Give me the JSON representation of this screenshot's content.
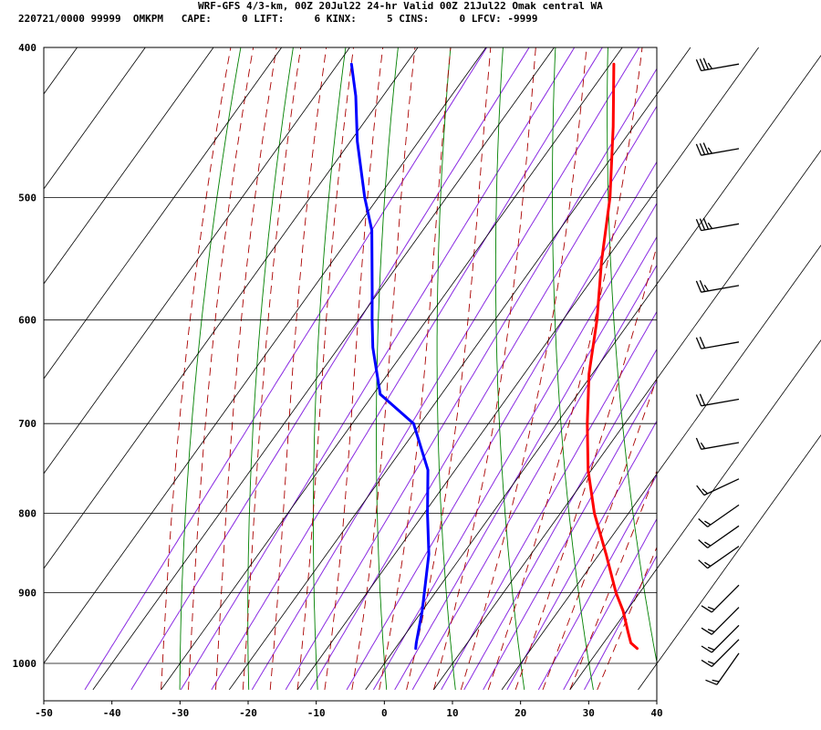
{
  "header": {
    "line1": "WRF-GFS 4/3-km, 00Z 20Jul22 24-hr Valid 00Z 21Jul22 Omak central WA",
    "line2": "220721/0000 99999  OMKPM   CAPE:     0 LIFT:     6 KINX:     5 CINS:     0 LFCV: -9999"
  },
  "colors": {
    "temperature": "#ff0000",
    "dewpoint": "#0000ff",
    "dry_adiabat": "#008000",
    "moist_adiabat": "#aa0000",
    "mixing_ratio": "#8a2be2",
    "grid": "#000000"
  },
  "chart_data": {
    "type": "line",
    "title": "WRF-GFS 4/3-km, 00Z 20Jul22 24-hr Valid 00Z 21Jul22 Omak central WA",
    "subtitle": "220721/0000 99999  OMKPM   CAPE:     0 LIFT:     6 KINX:     5 CINS:     0 LFCV: -9999",
    "xlabel": "",
    "ylabel": "",
    "x_axis": {
      "unit": "degC",
      "range": [
        -50,
        40
      ],
      "ticks": [
        -50,
        -40,
        -30,
        -20,
        -10,
        0,
        10,
        20,
        30,
        40
      ]
    },
    "y_axis": {
      "unit": "hPa",
      "scale": "log",
      "inverted": true,
      "range": [
        1040,
        400
      ],
      "ticks": [
        400,
        500,
        600,
        700,
        800,
        900,
        1000
      ]
    },
    "skew": "skew-T log-P",
    "grid": true,
    "background_lines": [
      "dry adiabats",
      "moist adiabats",
      "mixing ratio lines"
    ],
    "series": [
      {
        "name": "",
        "kind": "temperature",
        "color": "#ff0000",
        "points": [
          {
            "p": 978,
            "t": 35.5
          },
          {
            "p": 970,
            "t": 34.0
          },
          {
            "p": 955,
            "t": 32.5
          },
          {
            "p": 925,
            "t": 29.5
          },
          {
            "p": 900,
            "t": 26.5
          },
          {
            "p": 850,
            "t": 21.0
          },
          {
            "p": 800,
            "t": 15.0
          },
          {
            "p": 750,
            "t": 9.5
          },
          {
            "p": 700,
            "t": 4.5
          },
          {
            "p": 650,
            "t": -0.5
          },
          {
            "p": 600,
            "t": -5.0
          },
          {
            "p": 550,
            "t": -10.5
          },
          {
            "p": 500,
            "t": -16.0
          },
          {
            "p": 450,
            "t": -23.0
          },
          {
            "p": 410,
            "t": -29.5
          }
        ]
      },
      {
        "name": "",
        "kind": "dewpoint",
        "color": "#0000ff",
        "points": [
          {
            "p": 978,
            "t": 3.0
          },
          {
            "p": 970,
            "t": 2.5
          },
          {
            "p": 925,
            "t": 0.0
          },
          {
            "p": 850,
            "t": -5.0
          },
          {
            "p": 800,
            "t": -9.5
          },
          {
            "p": 750,
            "t": -14.0
          },
          {
            "p": 700,
            "t": -21.0
          },
          {
            "p": 670,
            "t": -29.0
          },
          {
            "p": 625,
            "t": -35.0
          },
          {
            "p": 600,
            "t": -38.0
          },
          {
            "p": 575,
            "t": -41.0
          },
          {
            "p": 525,
            "t": -47.5
          },
          {
            "p": 500,
            "t": -52.0
          },
          {
            "p": 460,
            "t": -59.0
          },
          {
            "p": 430,
            "t": -64.0
          },
          {
            "p": 410,
            "t": -68.0
          }
        ]
      }
    ],
    "wind_barbs": [
      {
        "p": 410,
        "dir": 260,
        "kt": 35
      },
      {
        "p": 465,
        "dir": 260,
        "kt": 35
      },
      {
        "p": 520,
        "dir": 260,
        "kt": 35
      },
      {
        "p": 570,
        "dir": 260,
        "kt": 25
      },
      {
        "p": 620,
        "dir": 260,
        "kt": 20
      },
      {
        "p": 675,
        "dir": 260,
        "kt": 20
      },
      {
        "p": 720,
        "dir": 260,
        "kt": 15
      },
      {
        "p": 760,
        "dir": 245,
        "kt": 15
      },
      {
        "p": 790,
        "dir": 235,
        "kt": 15
      },
      {
        "p": 815,
        "dir": 235,
        "kt": 15
      },
      {
        "p": 840,
        "dir": 235,
        "kt": 15
      },
      {
        "p": 890,
        "dir": 225,
        "kt": 15
      },
      {
        "p": 920,
        "dir": 225,
        "kt": 15
      },
      {
        "p": 945,
        "dir": 225,
        "kt": 15
      },
      {
        "p": 965,
        "dir": 225,
        "kt": 15
      },
      {
        "p": 985,
        "dir": 215,
        "kt": 15
      }
    ]
  }
}
